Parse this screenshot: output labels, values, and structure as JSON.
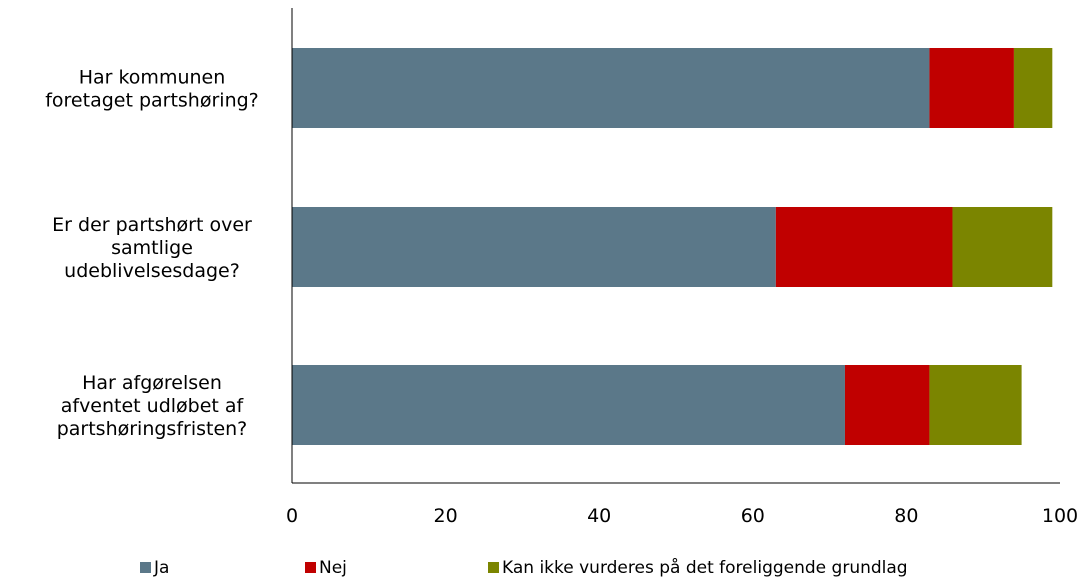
{
  "chart_data": {
    "type": "bar",
    "orientation": "horizontal",
    "stacked": true,
    "categories": [
      [
        "Har kommunen",
        "foretaget partshøring?"
      ],
      [
        "Er der partshørt over",
        "samtlige",
        "udeblivelsesdage?"
      ],
      [
        "Har afgørelsen",
        "afventet udløbet af",
        "partshøringsfristen?"
      ]
    ],
    "series": [
      {
        "name": "Ja",
        "values": [
          83,
          63,
          72
        ]
      },
      {
        "name": "Nej",
        "values": [
          11,
          23,
          11
        ]
      },
      {
        "name": "Kan ikke vurderes på det foreliggende grundlag",
        "values": [
          5,
          13,
          12
        ]
      }
    ],
    "xlim": [
      0,
      100
    ],
    "xticks": [
      "0",
      "20",
      "40",
      "60",
      "80",
      "100"
    ],
    "grid": false,
    "legend_position": "bottom",
    "colors": [
      "#5b7889",
      "#c00000",
      "#7b8500"
    ]
  }
}
